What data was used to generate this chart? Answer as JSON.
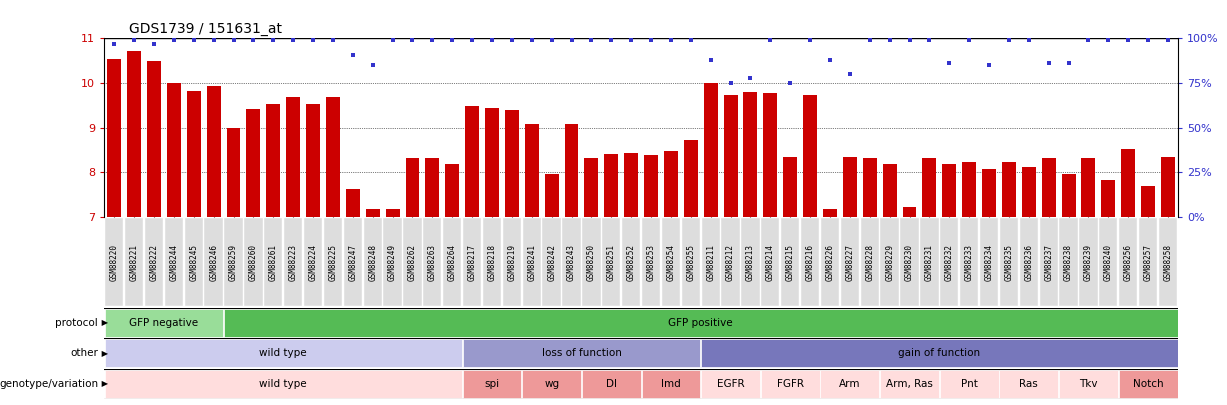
{
  "title": "GDS1739 / 151631_at",
  "bar_color": "#cc0000",
  "dot_color": "#3333cc",
  "samples": [
    "GSM88220",
    "GSM88221",
    "GSM88222",
    "GSM88244",
    "GSM88245",
    "GSM88246",
    "GSM88259",
    "GSM88260",
    "GSM88261",
    "GSM88223",
    "GSM88224",
    "GSM88225",
    "GSM88247",
    "GSM88248",
    "GSM88249",
    "GSM88262",
    "GSM88263",
    "GSM88264",
    "GSM88217",
    "GSM88218",
    "GSM88219",
    "GSM88241",
    "GSM88242",
    "GSM88243",
    "GSM88250",
    "GSM88251",
    "GSM88252",
    "GSM88253",
    "GSM88254",
    "GSM88255",
    "GSM88211",
    "GSM88212",
    "GSM88213",
    "GSM88214",
    "GSM88215",
    "GSM88216",
    "GSM88226",
    "GSM88227",
    "GSM88228",
    "GSM88229",
    "GSM88230",
    "GSM88231",
    "GSM88232",
    "GSM88233",
    "GSM88234",
    "GSM88235",
    "GSM88236",
    "GSM88237",
    "GSM88238",
    "GSM88239",
    "GSM88240",
    "GSM88256",
    "GSM88257",
    "GSM88258"
  ],
  "bar_heights": [
    10.55,
    10.72,
    10.5,
    10.0,
    9.82,
    9.93,
    9.0,
    9.42,
    9.52,
    9.68,
    9.52,
    9.68,
    7.62,
    7.18,
    7.18,
    8.32,
    8.32,
    8.18,
    9.48,
    9.45,
    9.4,
    9.08,
    7.95,
    9.08,
    8.32,
    8.4,
    8.42,
    8.38,
    8.48,
    8.72,
    10.0,
    9.72,
    9.8,
    9.78,
    8.35,
    9.72,
    7.18,
    8.35,
    8.32,
    8.18,
    7.22,
    8.32,
    8.18,
    8.22,
    8.08,
    8.22,
    8.12,
    8.32,
    7.95,
    8.32,
    7.82,
    8.52,
    7.68,
    8.35
  ],
  "dot_percentiles": [
    97,
    99,
    97,
    99,
    99,
    99,
    99,
    99,
    99,
    99,
    99,
    99,
    91,
    85,
    99,
    99,
    99,
    99,
    99,
    99,
    99,
    99,
    99,
    99,
    99,
    99,
    99,
    99,
    99,
    99,
    88,
    75,
    78,
    99,
    75,
    99,
    88,
    80,
    99,
    99,
    99,
    99,
    86,
    99,
    85,
    99,
    99,
    86,
    86,
    99,
    99,
    99,
    99,
    99
  ],
  "ylim_left": [
    7,
    11
  ],
  "yticks_left": [
    7,
    8,
    9,
    10,
    11
  ],
  "yticks_right": [
    0,
    25,
    50,
    75,
    100
  ],
  "protocol_groups": [
    {
      "label": "GFP negative",
      "start": 0,
      "end": 6,
      "color": "#99dd99"
    },
    {
      "label": "GFP positive",
      "start": 6,
      "end": 54,
      "color": "#55bb55"
    }
  ],
  "other_groups": [
    {
      "label": "wild type",
      "start": 0,
      "end": 18,
      "color": "#ccccee"
    },
    {
      "label": "loss of function",
      "start": 18,
      "end": 30,
      "color": "#9999cc"
    },
    {
      "label": "gain of function",
      "start": 30,
      "end": 54,
      "color": "#7777bb"
    }
  ],
  "genotype_groups": [
    {
      "label": "wild type",
      "start": 0,
      "end": 18,
      "color": "#ffdddd"
    },
    {
      "label": "spi",
      "start": 18,
      "end": 21,
      "color": "#ee9999"
    },
    {
      "label": "wg",
      "start": 21,
      "end": 24,
      "color": "#ee9999"
    },
    {
      "label": "Dl",
      "start": 24,
      "end": 27,
      "color": "#ee9999"
    },
    {
      "label": "Imd",
      "start": 27,
      "end": 30,
      "color": "#ee9999"
    },
    {
      "label": "EGFR",
      "start": 30,
      "end": 33,
      "color": "#ffdddd"
    },
    {
      "label": "FGFR",
      "start": 33,
      "end": 36,
      "color": "#ffdddd"
    },
    {
      "label": "Arm",
      "start": 36,
      "end": 39,
      "color": "#ffdddd"
    },
    {
      "label": "Arm, Ras",
      "start": 39,
      "end": 42,
      "color": "#ffdddd"
    },
    {
      "label": "Pnt",
      "start": 42,
      "end": 45,
      "color": "#ffdddd"
    },
    {
      "label": "Ras",
      "start": 45,
      "end": 48,
      "color": "#ffdddd"
    },
    {
      "label": "Tkv",
      "start": 48,
      "end": 51,
      "color": "#ffdddd"
    },
    {
      "label": "Notch",
      "start": 51,
      "end": 54,
      "color": "#ee9999"
    }
  ]
}
